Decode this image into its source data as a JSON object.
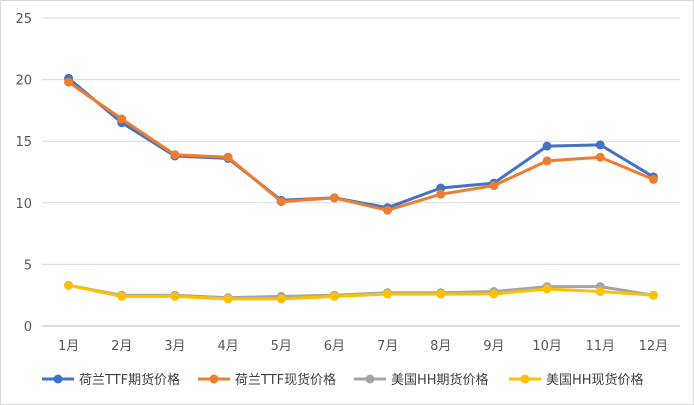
{
  "chart_data": {
    "type": "line",
    "title": "",
    "xlabel": "",
    "ylabel": "",
    "ylim": [
      0,
      25
    ],
    "yticks": [
      0,
      5,
      10,
      15,
      20,
      25
    ],
    "grid": "horizontal",
    "legend_position": "bottom",
    "categories": [
      "1月",
      "2月",
      "3月",
      "4月",
      "5月",
      "6月",
      "7月",
      "8月",
      "9月",
      "10月",
      "11月",
      "12月"
    ],
    "series": [
      {
        "name": "荷兰TTF期货价格",
        "color": "#4472C4",
        "values": [
          20.1,
          16.5,
          13.8,
          13.6,
          10.2,
          10.4,
          9.6,
          11.2,
          11.6,
          14.6,
          14.7,
          12.1
        ]
      },
      {
        "name": "荷兰TTF现货价格",
        "color": "#ED7D31",
        "values": [
          19.8,
          16.8,
          13.9,
          13.7,
          10.1,
          10.4,
          9.4,
          10.7,
          11.4,
          13.4,
          13.7,
          11.9
        ]
      },
      {
        "name": "美国HH期货价格",
        "color": "#A5A5A5",
        "values": [
          3.3,
          2.5,
          2.5,
          2.3,
          2.4,
          2.5,
          2.7,
          2.7,
          2.8,
          3.2,
          3.2,
          2.5
        ]
      },
      {
        "name": "美国HH现货价格",
        "color": "#FFC000",
        "values": [
          3.3,
          2.4,
          2.4,
          2.2,
          2.2,
          2.4,
          2.6,
          2.6,
          2.6,
          3.0,
          2.8,
          2.5
        ]
      }
    ]
  }
}
